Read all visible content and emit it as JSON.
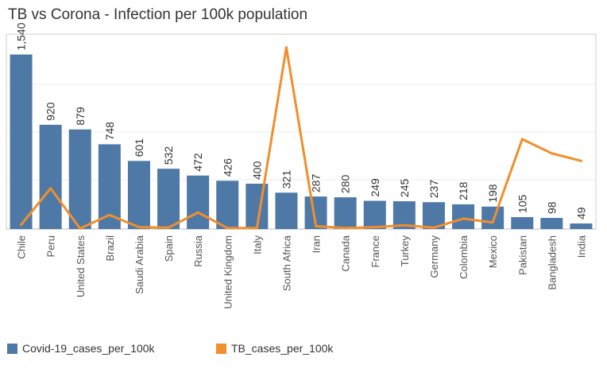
{
  "title": "TB vs Corona - Infection per 100k population",
  "colors": {
    "covid": "#4e79a7",
    "tb": "#f28e2b"
  },
  "chart_data": {
    "type": "bar",
    "title": "TB vs Corona - Infection per 100k population",
    "categories": [
      "Chile",
      "Peru",
      "United States",
      "Brazil",
      "Saudi Arabia",
      "Spain",
      "Russia",
      "United Kingdom",
      "Italy",
      "South Africa",
      "Iran",
      "Canada",
      "France",
      "Turkey",
      "Germany",
      "Colombia",
      "Mexico",
      "Pakistan",
      "Bangladesh",
      "India"
    ],
    "series": [
      {
        "name": "Covid-19_cases_per_100k",
        "type": "bar",
        "values": [
          1540,
          920,
          879,
          748,
          601,
          532,
          472,
          426,
          400,
          321,
          287,
          280,
          249,
          245,
          237,
          218,
          198,
          105,
          98,
          49
        ],
        "labels": [
          "1,540",
          "920",
          "879",
          "748",
          "601",
          "532",
          "472",
          "426",
          "400",
          "321",
          "287",
          "280",
          "249",
          "245",
          "237",
          "218",
          "198",
          "105",
          "98",
          "49"
        ]
      },
      {
        "name": "TB_cases_per_100k",
        "type": "line",
        "values": [
          45,
          430,
          5,
          150,
          20,
          15,
          175,
          10,
          10,
          1920,
          30,
          10,
          20,
          40,
          15,
          110,
          70,
          950,
          800,
          720
        ]
      }
    ],
    "ylim": [
      0,
      1600
    ],
    "line_ylim": [
      0,
      1950
    ],
    "xlabel": "",
    "ylabel": "",
    "grid": true,
    "legend": "bottom-left"
  }
}
